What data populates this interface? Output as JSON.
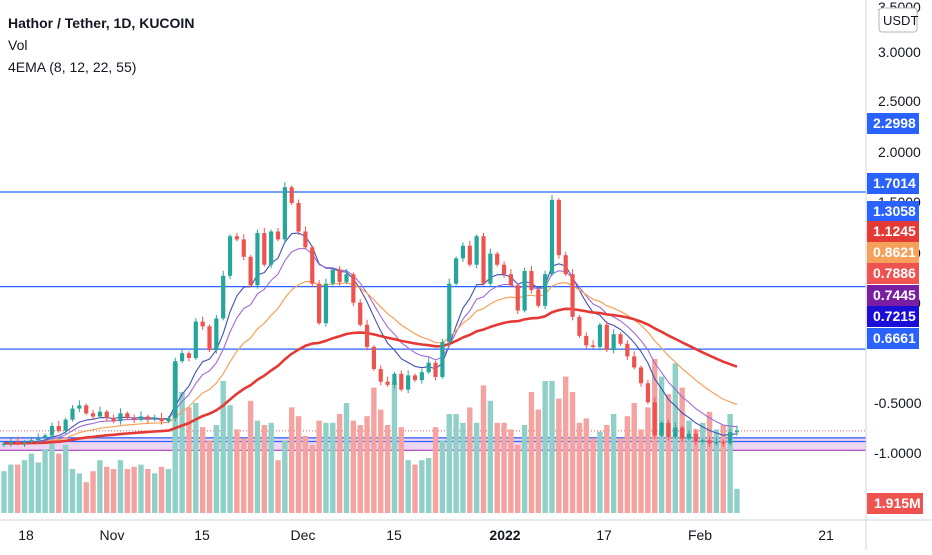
{
  "legend": {
    "title": "Hathor / Tether, 1D, KUCOIN",
    "vol": "Vol",
    "ema": "4EMA (8, 12, 22, 55)"
  },
  "currency": "USDT",
  "colors": {
    "up": "#26a69a",
    "down": "#ef5350",
    "vol_up": "#8fd1c8",
    "vol_down": "#f4a3a0",
    "ema8": "#3f51b5",
    "ema12": "#9c6ade",
    "ema22": "#f6a15b",
    "ema55": "#e53935",
    "hline": "#2962ff",
    "zone": "#e6c8ee"
  },
  "chart_data": {
    "type": "candlestick",
    "price_axis": {
      "range": [
        0.5,
        3.5
      ],
      "ticks": [
        "0.5000",
        "1.0000",
        "1.5000",
        "2.0000",
        "2.5000",
        "3.0000",
        "3.5000"
      ]
    },
    "volume_axis": {
      "ticks": [
        "-0.5000",
        "-1.0000"
      ]
    },
    "time_axis": {
      "ticks": [
        "18",
        "Nov",
        "15",
        "Dec",
        "15",
        "2022",
        "17",
        "Feb",
        "21"
      ]
    },
    "horizontal_levels": [
      2.2998,
      1.7014,
      1.3058,
      0.7445,
      0.7215
    ],
    "zone": {
      "from": 0.6661,
      "to": 0.7445
    },
    "price_labels": [
      {
        "value": "2.2998",
        "bg": "#2962ff",
        "fg": "#ffffff",
        "kind": "level"
      },
      {
        "value": "1.7014",
        "bg": "#2962ff",
        "fg": "#ffffff",
        "kind": "level"
      },
      {
        "value": "1.3058",
        "bg": "#2962ff",
        "fg": "#ffffff",
        "kind": "level"
      },
      {
        "value": "1.1245",
        "bg": "#e53935",
        "fg": "#ffffff",
        "kind": "ema55"
      },
      {
        "value": "0.8621",
        "bg": "#f6a15b",
        "fg": "#ffffff",
        "kind": "ema22"
      },
      {
        "value": "0.7886",
        "bg": "#ef5350",
        "fg": "#ffffff",
        "kind": "last"
      },
      {
        "value": "0.7445",
        "bg": "#7b1fa2",
        "fg": "#ffffff",
        "kind": "zone"
      },
      {
        "value": "0.7215",
        "bg": "#1a0dd6",
        "fg": "#ffffff",
        "kind": "level"
      },
      {
        "value": "0.6661",
        "bg": "#2962ff",
        "fg": "#ffffff",
        "kind": "level"
      }
    ],
    "last_price": 0.7886,
    "volume_label": "1.915M",
    "candles": [
      [
        0.7,
        0.71
      ],
      [
        0.71,
        0.72
      ],
      [
        0.72,
        0.71
      ],
      [
        0.71,
        0.72
      ],
      [
        0.72,
        0.73
      ],
      [
        0.73,
        0.74
      ],
      [
        0.74,
        0.76
      ],
      [
        0.76,
        0.82
      ],
      [
        0.82,
        0.79
      ],
      [
        0.79,
        0.86
      ],
      [
        0.86,
        0.93
      ],
      [
        0.93,
        0.95
      ],
      [
        0.95,
        0.9
      ],
      [
        0.9,
        0.88
      ],
      [
        0.88,
        0.91
      ],
      [
        0.91,
        0.87
      ],
      [
        0.87,
        0.85
      ],
      [
        0.85,
        0.9
      ],
      [
        0.9,
        0.87
      ],
      [
        0.87,
        0.86
      ],
      [
        0.86,
        0.88
      ],
      [
        0.88,
        0.86
      ],
      [
        0.86,
        0.87
      ],
      [
        0.87,
        0.85
      ],
      [
        0.85,
        0.87
      ],
      [
        0.87,
        1.23
      ],
      [
        1.23,
        1.28
      ],
      [
        1.28,
        1.25
      ],
      [
        1.25,
        1.48
      ],
      [
        1.48,
        1.45
      ],
      [
        1.45,
        1.3
      ],
      [
        1.3,
        1.5
      ],
      [
        1.5,
        1.77
      ],
      [
        1.77,
        2.02
      ],
      [
        2.02,
        2.0
      ],
      [
        2.0,
        1.89
      ],
      [
        1.89,
        1.71
      ],
      [
        1.71,
        2.04
      ],
      [
        2.04,
        1.84
      ],
      [
        1.84,
        2.05
      ],
      [
        2.05,
        2.0
      ],
      [
        2.0,
        2.33
      ],
      [
        2.33,
        2.23
      ],
      [
        2.23,
        2.05
      ],
      [
        2.05,
        1.95
      ],
      [
        1.95,
        1.72
      ],
      [
        1.72,
        1.47
      ],
      [
        1.47,
        1.72
      ],
      [
        1.72,
        1.81
      ],
      [
        1.81,
        1.73
      ],
      [
        1.73,
        1.78
      ],
      [
        1.78,
        1.6
      ],
      [
        1.6,
        1.46
      ],
      [
        1.46,
        1.32
      ],
      [
        1.32,
        1.18
      ],
      [
        1.18,
        1.1
      ],
      [
        1.1,
        1.08
      ],
      [
        1.08,
        1.15
      ],
      [
        1.15,
        1.05
      ],
      [
        1.05,
        1.14
      ],
      [
        1.14,
        1.11
      ],
      [
        1.11,
        1.16
      ],
      [
        1.16,
        1.22
      ],
      [
        1.22,
        1.13
      ],
      [
        1.13,
        1.35
      ],
      [
        1.35,
        1.72
      ],
      [
        1.72,
        1.88
      ],
      [
        1.88,
        1.96
      ],
      [
        1.96,
        1.84
      ],
      [
        1.84,
        2.02
      ],
      [
        2.02,
        1.72
      ],
      [
        1.72,
        1.91
      ],
      [
        1.91,
        1.84
      ],
      [
        1.84,
        1.78
      ],
      [
        1.78,
        1.71
      ],
      [
        1.71,
        1.55
      ],
      [
        1.55,
        1.8
      ],
      [
        1.8,
        1.68
      ],
      [
        1.68,
        1.58
      ],
      [
        1.58,
        1.78
      ],
      [
        1.78,
        2.25
      ],
      [
        2.25,
        1.9
      ],
      [
        1.9,
        1.78
      ],
      [
        1.78,
        1.51
      ],
      [
        1.51,
        1.39
      ],
      [
        1.39,
        1.33
      ],
      [
        1.33,
        1.32
      ],
      [
        1.32,
        1.46
      ],
      [
        1.46,
        1.3
      ],
      [
        1.3,
        1.4
      ],
      [
        1.4,
        1.34
      ],
      [
        1.34,
        1.26
      ],
      [
        1.26,
        1.19
      ],
      [
        1.19,
        1.09
      ],
      [
        1.09,
        0.97
      ],
      [
        0.97,
        0.76
      ],
      [
        0.76,
        0.84
      ],
      [
        0.84,
        0.75
      ],
      [
        0.75,
        0.81
      ],
      [
        0.81,
        0.74
      ],
      [
        0.74,
        0.77
      ],
      [
        0.77,
        0.72
      ],
      [
        0.72,
        0.73
      ],
      [
        0.73,
        0.71
      ],
      [
        0.71,
        0.72
      ],
      [
        0.72,
        0.71
      ],
      [
        0.71,
        0.78
      ],
      [
        0.78,
        0.79
      ]
    ],
    "volume": [
      0.19,
      0.22,
      0.22,
      0.24,
      0.27,
      0.23,
      0.29,
      0.35,
      0.27,
      0.31,
      0.2,
      0.18,
      0.14,
      0.19,
      0.24,
      0.21,
      0.2,
      0.24,
      0.2,
      0.21,
      0.22,
      0.2,
      0.18,
      0.21,
      0.2,
      0.68,
      0.55,
      0.48,
      0.5,
      0.39,
      0.33,
      0.4,
      0.6,
      0.49,
      0.38,
      0.34,
      0.51,
      0.42,
      0.4,
      0.41,
      0.24,
      0.33,
      0.48,
      0.44,
      0.35,
      0.31,
      0.42,
      0.41,
      0.41,
      0.45,
      0.5,
      0.42,
      0.4,
      0.44,
      0.57,
      0.47,
      0.4,
      0.6,
      0.39,
      0.24,
      0.22,
      0.24,
      0.25,
      0.39,
      0.33,
      0.45,
      0.45,
      0.41,
      0.48,
      0.41,
      0.58,
      0.51,
      0.41,
      0.41,
      0.38,
      0.31,
      0.4,
      0.55,
      0.47,
      0.6,
      0.6,
      0.52,
      0.62,
      0.55,
      0.41,
      0.43,
      0.34,
      0.37,
      0.4,
      0.45,
      0.34,
      0.44,
      0.5,
      0.38,
      0.48,
      0.7,
      0.62,
      0.54,
      0.68,
      0.57,
      0.42,
      0.38,
      0.41,
      0.46,
      0.38,
      0.4,
      0.45,
      0.11
    ]
  }
}
